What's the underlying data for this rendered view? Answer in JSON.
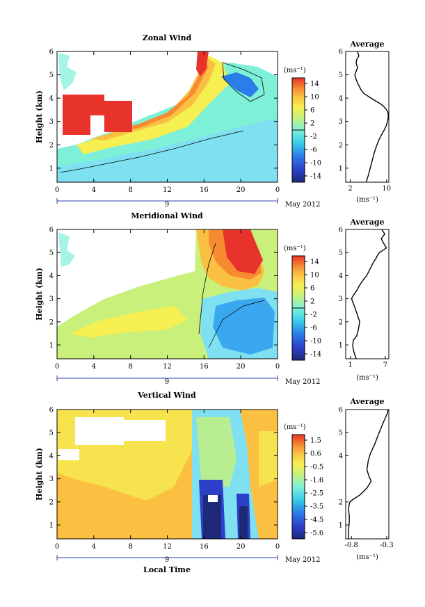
{
  "chart_data": [
    {
      "type": "heatmap",
      "title": "Zonal Wind",
      "ylabel": "Height (km)",
      "xlabel": "",
      "x_ticks": [
        "0",
        "4",
        "8",
        "12",
        "16",
        "20",
        "0"
      ],
      "y_ticks": [
        "1",
        "2",
        "3",
        "4",
        "5",
        "6"
      ],
      "xlim": [
        0,
        24
      ],
      "ylim": [
        0.4,
        6
      ],
      "date_tick": "9",
      "date_label": "May 2012",
      "colorbar": {
        "unit": "(ms⁻¹)",
        "ticks": [
          "14",
          "10",
          "6",
          "2",
          "-2",
          "-6",
          "-10",
          "-14"
        ],
        "range": [
          -14,
          14
        ]
      },
      "profile": {
        "title": "Average",
        "x_ticks": [
          "2",
          "10"
        ],
        "xlabel": "(ms⁻¹)",
        "y_ticks": [
          "1",
          "2",
          "3",
          "4",
          "5",
          "6"
        ],
        "xlim": [
          1,
          10.5
        ],
        "x": [
          5.5,
          6.0,
          6.4,
          6.8,
          7.2,
          7.7,
          8.3,
          8.8,
          9.4,
          9.9,
          10.2,
          10.4,
          10.3,
          10.0,
          9.6,
          8.7,
          7.4,
          6.2,
          5.0,
          4.4,
          4.0,
          3.5,
          3.2,
          3.0,
          3.3,
          3.6,
          3.3,
          3.4,
          3.9,
          3.6
        ],
        "y": [
          0.4,
          0.7,
          1.0,
          1.3,
          1.6,
          1.9,
          2.2,
          2.4,
          2.6,
          2.8,
          3.0,
          3.2,
          3.4,
          3.5,
          3.6,
          3.75,
          3.9,
          4.05,
          4.2,
          4.35,
          4.5,
          4.7,
          4.85,
          5.0,
          5.15,
          5.3,
          5.5,
          5.65,
          5.8,
          6.0
        ]
      },
      "contour_levels": [
        -2,
        2
      ]
    },
    {
      "type": "heatmap",
      "title": "Meridional Wind",
      "ylabel": "Height (km)",
      "xlabel": "",
      "x_ticks": [
        "0",
        "4",
        "8",
        "12",
        "16",
        "20",
        "0"
      ],
      "y_ticks": [
        "1",
        "2",
        "3",
        "4",
        "5",
        "6"
      ],
      "xlim": [
        0,
        24
      ],
      "ylim": [
        0.4,
        6
      ],
      "date_tick": "9",
      "date_label": "May 2012",
      "colorbar": {
        "unit": "(ms⁻¹)",
        "ticks": [
          "14",
          "10",
          "6",
          "2",
          "-2",
          "-6",
          "-10",
          "-14"
        ],
        "range": [
          -14,
          14
        ]
      },
      "profile": {
        "title": "Average",
        "x_ticks": [
          "1",
          "7"
        ],
        "xlabel": "(ms⁻¹)",
        "y_ticks": [
          "1",
          "2",
          "3",
          "4",
          "5",
          "6"
        ],
        "xlim": [
          0.2,
          7.6
        ],
        "x": [
          2.0,
          1.6,
          1.4,
          1.5,
          2.1,
          2.4,
          2.6,
          2.2,
          1.8,
          1.5,
          1.2,
          1.4,
          1.8,
          2.2,
          2.5,
          2.9,
          3.3,
          3.8,
          4.2,
          4.6,
          5.0,
          5.4,
          5.7,
          6.0,
          6.3,
          6.6,
          7.2,
          6.7,
          6.3,
          6.9,
          6.4
        ],
        "y": [
          0.4,
          0.7,
          0.95,
          1.2,
          1.4,
          1.7,
          2.0,
          2.3,
          2.6,
          2.8,
          3.0,
          3.1,
          3.25,
          3.4,
          3.55,
          3.7,
          3.85,
          4.0,
          4.2,
          4.4,
          4.6,
          4.75,
          4.9,
          5.0,
          5.05,
          5.1,
          5.2,
          5.4,
          5.6,
          5.8,
          6.0
        ]
      },
      "contour_levels": [
        -2,
        2
      ]
    },
    {
      "type": "heatmap",
      "title": "Vertical Wind",
      "ylabel": "Height (km)",
      "xlabel": "Local Time",
      "x_ticks": [
        "0",
        "4",
        "8",
        "12",
        "16",
        "20",
        "0"
      ],
      "y_ticks": [
        "1",
        "2",
        "3",
        "4",
        "5",
        "6"
      ],
      "xlim": [
        0,
        24
      ],
      "ylim": [
        0.4,
        6
      ],
      "date_tick": "9",
      "date_label": "May 2012",
      "colorbar": {
        "unit": "(ms⁻¹)",
        "ticks": [
          "1.5",
          "0.6",
          "-0.5",
          "-1.6",
          "-2.5",
          "-3.5",
          "-4.5",
          "-5.6"
        ],
        "range": [
          -6.0,
          2.0
        ]
      },
      "profile": {
        "title": "Average",
        "x_ticks": [
          "-0.8",
          "-0.3"
        ],
        "xlabel": "(ms⁻¹)",
        "y_ticks": [
          "1",
          "2",
          "4",
          "5",
          "6"
        ],
        "xlim": [
          -0.88,
          -0.27
        ],
        "x": [
          -0.84,
          -0.84,
          -0.83,
          -0.83,
          -0.84,
          -0.83,
          -0.82,
          -0.78,
          -0.68,
          -0.58,
          -0.52,
          -0.55,
          -0.58,
          -0.56,
          -0.53,
          -0.47,
          -0.42,
          -0.38,
          -0.34,
          -0.31,
          -0.29,
          -0.28
        ],
        "y": [
          0.4,
          0.8,
          1.1,
          1.4,
          1.7,
          1.9,
          2.0,
          2.1,
          2.3,
          2.6,
          2.9,
          3.1,
          3.4,
          3.8,
          4.1,
          4.5,
          4.9,
          5.2,
          5.5,
          5.7,
          5.85,
          6.0
        ]
      }
    }
  ]
}
